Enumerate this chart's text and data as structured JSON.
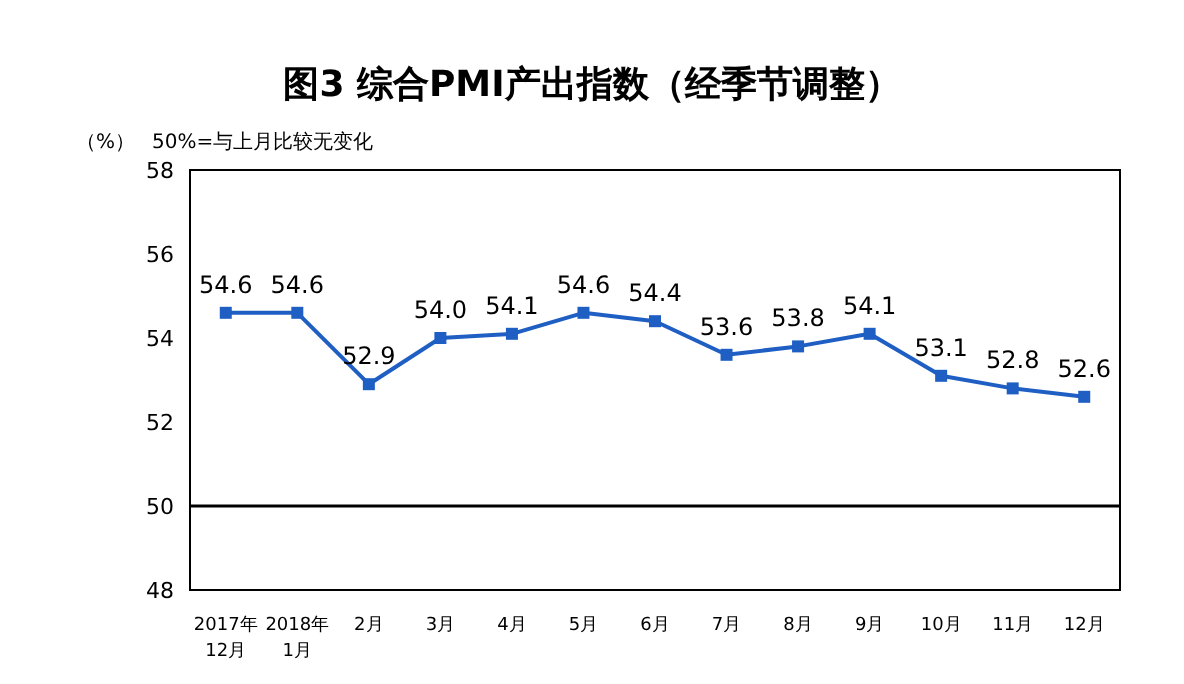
{
  "chart_data": {
    "type": "line",
    "title": "图3 综合PMI产出指数（经季节调整）",
    "ylabel": "（%）",
    "annotations": [
      "50%=与上月比较无变化"
    ],
    "categories": [
      "2017年\n12月",
      "2018年\n1月",
      "2月",
      "3月",
      "4月",
      "5月",
      "6月",
      "7月",
      "8月",
      "9月",
      "10月",
      "11月",
      "12月"
    ],
    "series": [
      {
        "color": "#1f5fc4",
        "values": [
          54.6,
          54.6,
          52.9,
          54.0,
          54.1,
          54.6,
          54.4,
          53.6,
          53.8,
          54.1,
          53.1,
          52.8,
          52.6
        ]
      }
    ],
    "value_labels": [
      "54.6",
      "54.6",
      "52.9",
      "54.0",
      "54.1",
      "54.6",
      "54.4",
      "53.6",
      "53.8",
      "54.1",
      "53.1",
      "52.8",
      "52.6"
    ],
    "ylim": [
      48,
      58
    ],
    "yticks": [
      48,
      50,
      52,
      54,
      56,
      58
    ],
    "ref_lines": [
      {
        "axis": "y",
        "value": 50,
        "color": "#000000"
      }
    ],
    "marker": "square",
    "line_style": "solid",
    "grid": false
  }
}
